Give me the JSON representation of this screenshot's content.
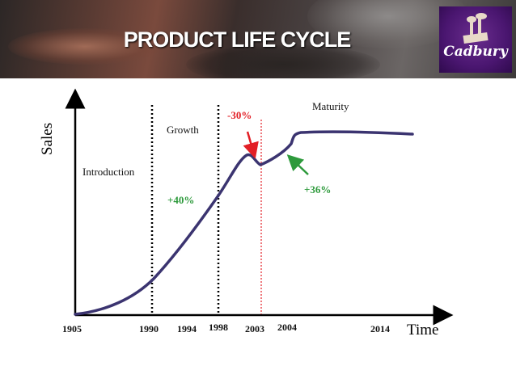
{
  "header": {
    "title": "PRODUCT LIFE CYCLE",
    "logo_text": "Cadbury"
  },
  "chart_data": {
    "type": "line",
    "ylabel": "Sales",
    "xlabel": "Time",
    "x_ticks": [
      "1905",
      "1990",
      "1994",
      "1998",
      "2003",
      "2004",
      "2014"
    ],
    "stages": [
      {
        "name": "Introduction"
      },
      {
        "name": "Growth"
      },
      {
        "name": "Maturity"
      }
    ],
    "annotations": [
      {
        "text": "+40%",
        "color": "#2e9a3c"
      },
      {
        "text": "-30%",
        "color": "#e21f26"
      },
      {
        "text": "+36%",
        "color": "#2e9a3c"
      }
    ],
    "curve_color": "#3b3470",
    "divider_color": "#000000",
    "drop_line_color": "#e21f26"
  }
}
